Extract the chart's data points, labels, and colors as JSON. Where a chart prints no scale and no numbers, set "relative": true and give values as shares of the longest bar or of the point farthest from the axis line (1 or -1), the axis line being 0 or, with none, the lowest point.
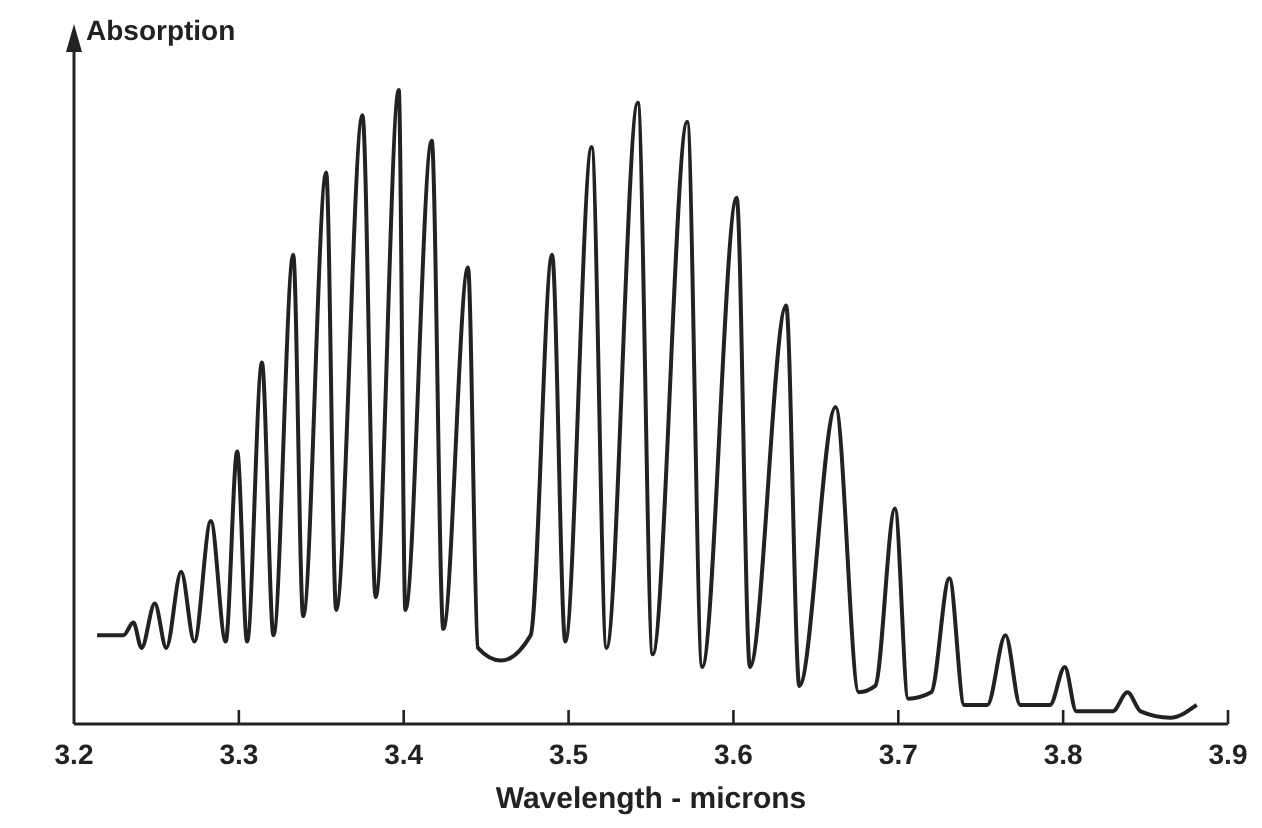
{
  "chart_data": {
    "type": "line",
    "relative": true,
    "ylabel": "Absorption",
    "xlabel": "Wavelength - microns",
    "color": "#222222",
    "marker": "none",
    "line_style": "solid",
    "xlim": [
      3.2,
      3.9
    ],
    "xticks": [
      3.2,
      3.3,
      3.4,
      3.5,
      3.6,
      3.7,
      3.8,
      3.9
    ],
    "x": [
      3.214,
      3.23,
      3.236,
      3.241,
      3.249,
      3.256,
      3.265,
      3.273,
      3.283,
      3.292,
      3.299,
      3.305,
      3.314,
      3.321,
      3.333,
      3.339,
      3.353,
      3.359,
      3.375,
      3.383,
      3.397,
      3.401,
      3.417,
      3.424,
      3.439,
      3.445,
      3.459,
      3.477,
      3.49,
      3.498,
      3.514,
      3.523,
      3.542,
      3.551,
      3.572,
      3.581,
      3.602,
      3.61,
      3.632,
      3.64,
      3.662,
      3.676,
      3.686,
      3.698,
      3.706,
      3.72,
      3.731,
      3.74,
      3.754,
      3.765,
      3.774,
      3.792,
      3.801,
      3.808,
      3.83,
      3.839,
      3.847,
      3.865,
      3.881
    ],
    "values": [
      0.14,
      0.14,
      0.16,
      0.12,
      0.19,
      0.12,
      0.24,
      0.13,
      0.32,
      0.13,
      0.43,
      0.13,
      0.57,
      0.14,
      0.74,
      0.17,
      0.87,
      0.18,
      0.96,
      0.2,
      1.0,
      0.18,
      0.92,
      0.15,
      0.72,
      0.12,
      0.1,
      0.14,
      0.74,
      0.13,
      0.91,
      0.12,
      0.98,
      0.11,
      0.95,
      0.09,
      0.83,
      0.09,
      0.66,
      0.06,
      0.5,
      0.05,
      0.06,
      0.34,
      0.04,
      0.05,
      0.23,
      0.03,
      0.03,
      0.14,
      0.03,
      0.03,
      0.09,
      0.02,
      0.02,
      0.05,
      0.02,
      0.01,
      0.03
    ]
  }
}
